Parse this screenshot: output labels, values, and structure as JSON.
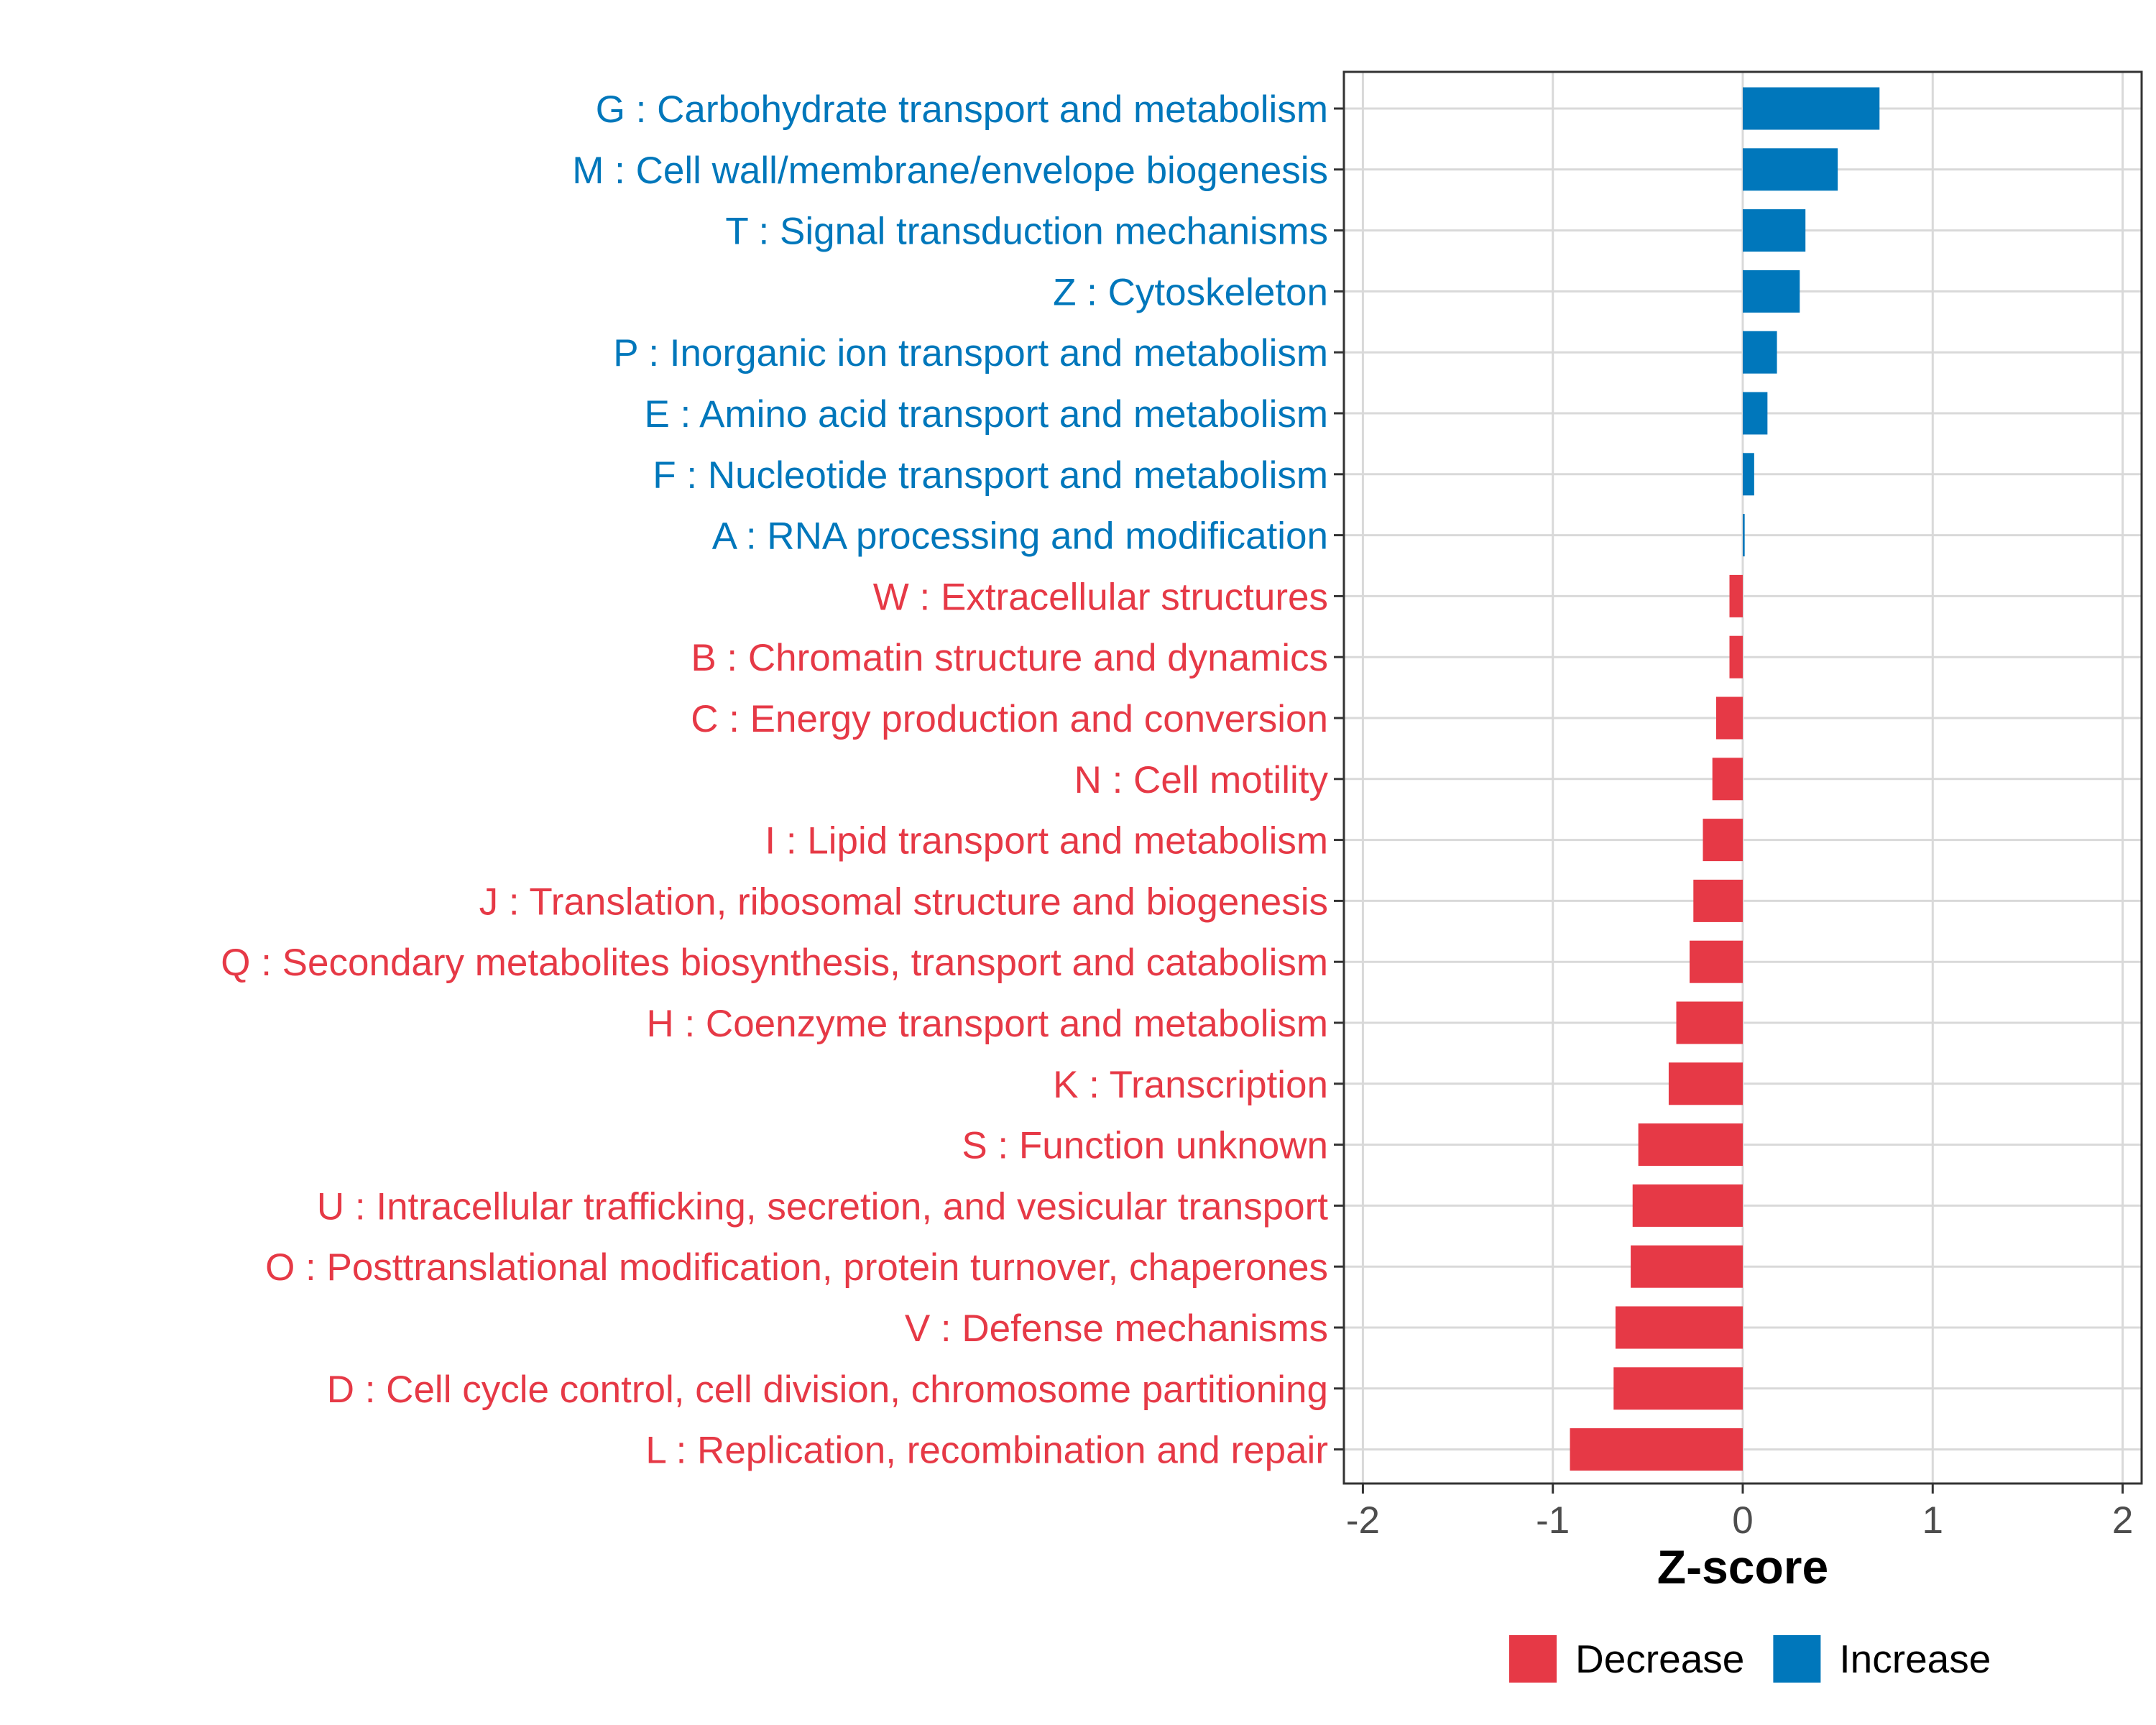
{
  "colors": {
    "increase": "#0077bb",
    "decrease": "#e63946",
    "grid": "#d9d9d9",
    "panel_border": "#333333",
    "tick_text": "#4d4d4d"
  },
  "chart_data": {
    "type": "bar",
    "orientation": "horizontal",
    "title": "",
    "xlabel": "Z-score",
    "ylabel": "",
    "xlim": [
      -2.1,
      2.1
    ],
    "xticks": [
      -2,
      -1,
      0,
      1,
      2
    ],
    "xtick_labels": [
      "-2",
      "-1",
      "0",
      "1",
      "2"
    ],
    "grid": true,
    "legend_position": "bottom",
    "legend": [
      {
        "key": "decrease",
        "label": "Decrease"
      },
      {
        "key": "increase",
        "label": "Increase"
      }
    ],
    "categories": [
      "G : Carbohydrate transport and metabolism",
      "M : Cell wall/membrane/envelope biogenesis",
      "T : Signal transduction mechanisms",
      "Z : Cytoskeleton",
      "P : Inorganic ion transport and metabolism",
      "E : Amino acid transport and metabolism",
      "F : Nucleotide transport and metabolism",
      "A : RNA processing and modification",
      "W : Extracellular structures",
      "B : Chromatin structure and dynamics",
      "C : Energy production and conversion",
      "N : Cell motility",
      "I : Lipid transport and metabolism",
      "J : Translation, ribosomal structure and biogenesis",
      "Q : Secondary metabolites biosynthesis, transport and catabolism",
      "H : Coenzyme transport and metabolism",
      "K : Transcription",
      "S : Function unknown",
      "U : Intracellular trafficking, secretion, and vesicular transport",
      "O : Posttranslational modification, protein turnover, chaperones",
      "V : Defense mechanisms",
      "D : Cell cycle control, cell division, chromosome partitioning",
      "L : Replication, recombination and repair"
    ],
    "values": [
      0.72,
      0.5,
      0.33,
      0.3,
      0.18,
      0.13,
      0.06,
      0.01,
      -0.07,
      -0.07,
      -0.14,
      -0.16,
      -0.21,
      -0.26,
      -0.28,
      -0.35,
      -0.39,
      -0.55,
      -0.58,
      -0.59,
      -0.67,
      -0.68,
      -0.91
    ],
    "groups": [
      "increase",
      "increase",
      "increase",
      "increase",
      "increase",
      "increase",
      "increase",
      "increase",
      "decrease",
      "decrease",
      "decrease",
      "decrease",
      "decrease",
      "decrease",
      "decrease",
      "decrease",
      "decrease",
      "decrease",
      "decrease",
      "decrease",
      "decrease",
      "decrease",
      "decrease"
    ]
  }
}
